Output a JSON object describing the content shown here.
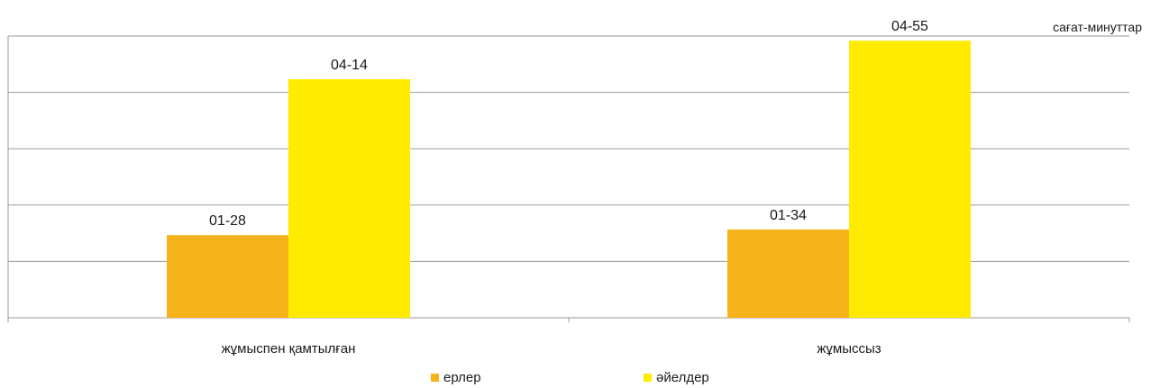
{
  "chart_data": {
    "type": "bar",
    "unit_label": "сағат-минуттар",
    "categories": [
      "жұмыспен қамтылған",
      "жұмыссыз"
    ],
    "series": [
      {
        "name": "ерлер",
        "color": "#f7b31b",
        "values": [
          88,
          94
        ],
        "labels": [
          "01-28",
          "01-34"
        ]
      },
      {
        "name": "әйелдер",
        "color": "#ffeb00",
        "values": [
          254,
          295
        ],
        "labels": [
          "04-14",
          "04-55"
        ]
      }
    ],
    "ylim": [
      0,
      300
    ],
    "grid": true,
    "legend_position": "bottom",
    "title": "",
    "xlabel": "",
    "ylabel": ""
  }
}
